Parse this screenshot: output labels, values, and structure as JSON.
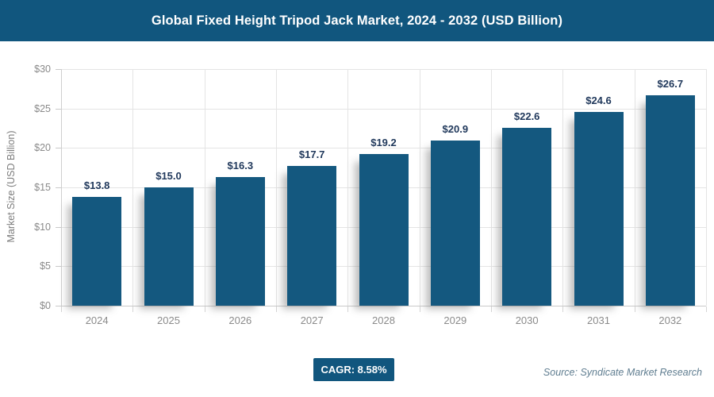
{
  "header": {
    "title": "Global Fixed Height Tripod Jack Market, 2024 - 2032 (USD Billion)"
  },
  "chart_data": {
    "type": "bar",
    "title": "Global Fixed Height Tripod Jack Market, 2024 - 2032 (USD Billion)",
    "categories": [
      "2024",
      "2025",
      "2026",
      "2027",
      "2028",
      "2029",
      "2030",
      "2031",
      "2032"
    ],
    "values": [
      13.8,
      15.0,
      16.3,
      17.7,
      19.2,
      20.9,
      22.6,
      24.6,
      26.7
    ],
    "value_labels": [
      "$13.8",
      "$15.0",
      "$16.3",
      "$17.7",
      "$19.2",
      "$20.9",
      "$22.6",
      "$24.6",
      "$26.7"
    ],
    "xlabel": "",
    "ylabel": "Market Size (USD Billion)",
    "ylim": [
      0,
      30
    ],
    "ytick_step": 5,
    "ytick_labels": [
      "$0",
      "$5",
      "$10",
      "$15",
      "$20",
      "$25",
      "$30"
    ],
    "grid": true,
    "legend": "none",
    "bar_color": "#14587f",
    "value_label_color": "#21395c"
  },
  "footer": {
    "cagr_label": "CAGR: 8.58%",
    "source": "Source: Syndicate Market Research"
  },
  "colors": {
    "brand_blue": "#11567e",
    "grid_gray": "#e4e4e4",
    "tick_text_gray": "#8a8a8a"
  }
}
